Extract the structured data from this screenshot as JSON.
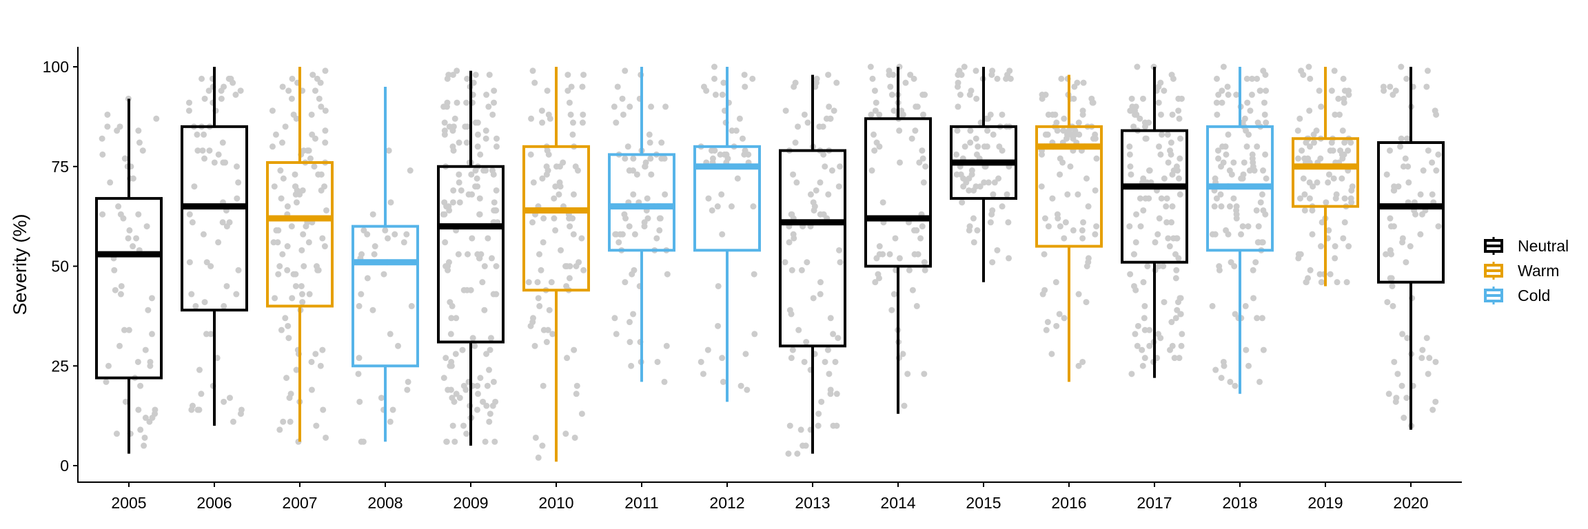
{
  "chart_data": {
    "type": "box",
    "title": "",
    "xlabel": "",
    "ylabel": "Severity (%)",
    "ylim": [
      -3.5,
      105
    ],
    "yticks": [
      "0",
      "25",
      "50",
      "75",
      "100"
    ],
    "ytick_values": [
      0,
      25,
      50,
      75,
      100
    ],
    "categories": [
      "2005",
      "2006",
      "2007",
      "2008",
      "2009",
      "2010",
      "2011",
      "2012",
      "2013",
      "2014",
      "2015",
      "2016",
      "2017",
      "2018",
      "2019",
      "2020"
    ],
    "groups": [
      "Neutral",
      "Neutral",
      "Warm",
      "Cold",
      "Neutral",
      "Warm",
      "Cold",
      "Cold",
      "Neutral",
      "Neutral",
      "Neutral",
      "Warm",
      "Neutral",
      "Cold",
      "Warm",
      "Neutral"
    ],
    "boxes": [
      {
        "min": 3,
        "q1": 22,
        "median": 53,
        "q3": 67,
        "max": 92
      },
      {
        "min": 10,
        "q1": 39,
        "median": 65,
        "q3": 85,
        "max": 100
      },
      {
        "min": 6,
        "q1": 40,
        "median": 62,
        "q3": 76,
        "max": 100
      },
      {
        "min": 6,
        "q1": 25,
        "median": 51,
        "q3": 60,
        "max": 95
      },
      {
        "min": 5,
        "q1": 31,
        "median": 60,
        "q3": 75,
        "max": 99
      },
      {
        "min": 1,
        "q1": 44,
        "median": 64,
        "q3": 80,
        "max": 100
      },
      {
        "min": 21,
        "q1": 54,
        "median": 65,
        "q3": 78,
        "max": 100
      },
      {
        "min": 16,
        "q1": 54,
        "median": 75,
        "q3": 80,
        "max": 100
      },
      {
        "min": 3,
        "q1": 30,
        "median": 61,
        "q3": 79,
        "max": 98
      },
      {
        "min": 13,
        "q1": 50,
        "median": 62,
        "q3": 87,
        "max": 100
      },
      {
        "min": 46,
        "q1": 67,
        "median": 76,
        "q3": 85,
        "max": 100
      },
      {
        "min": 21,
        "q1": 55,
        "median": 80,
        "q3": 85,
        "max": 98
      },
      {
        "min": 22,
        "q1": 51,
        "median": 70,
        "q3": 84,
        "max": 100
      },
      {
        "min": 18,
        "q1": 54,
        "median": 70,
        "q3": 85,
        "max": 100
      },
      {
        "min": 45,
        "q1": 65,
        "median": 75,
        "q3": 82,
        "max": 100
      },
      {
        "min": 9,
        "q1": 46,
        "median": 65,
        "q3": 81,
        "max": 100
      }
    ],
    "point_counts": [
      60,
      70,
      110,
      35,
      160,
      95,
      75,
      55,
      90,
      80,
      85,
      100,
      130,
      120,
      100,
      80
    ],
    "legend": {
      "placement": "right",
      "entries": [
        {
          "label": "Neutral",
          "color": "#000000"
        },
        {
          "label": "Warm",
          "color": "#E69F00"
        },
        {
          "label": "Cold",
          "color": "#56B4E9"
        }
      ]
    },
    "point_color": "#CCCCCC",
    "grid": false
  }
}
